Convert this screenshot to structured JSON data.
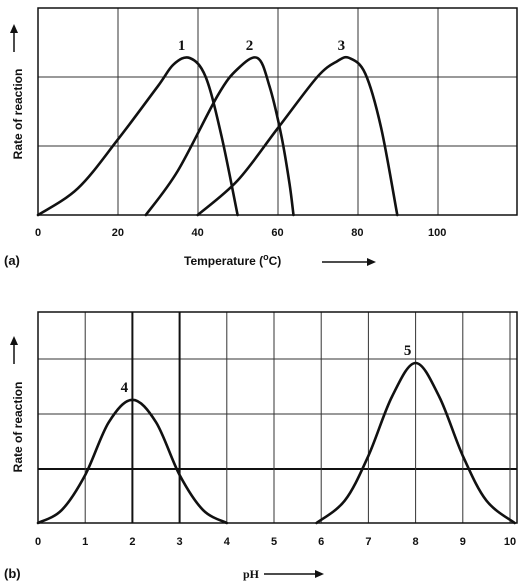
{
  "chart_data": [
    {
      "id": "a",
      "type": "line",
      "panel_label": "(a)",
      "title": "",
      "xlabel": "Temperature (°C)",
      "xlabel_main": "Temperature (",
      "xlabel_sup": "o",
      "xlabel_tail": "C)",
      "ylabel": "Rate of reaction",
      "xlim": [
        0,
        120
      ],
      "ylim": [
        0,
        1
      ],
      "xticks": [
        0,
        20,
        40,
        60,
        80,
        100
      ],
      "grid": true,
      "legend": "none",
      "series": [
        {
          "label": "1",
          "x": [
            0,
            10,
            20,
            30,
            34,
            38,
            42,
            46,
            50
          ],
          "y": [
            0,
            0.17,
            0.48,
            0.82,
            0.96,
            1.0,
            0.88,
            0.5,
            0
          ]
        },
        {
          "label": "2",
          "x": [
            27,
            35,
            45,
            50,
            55,
            58,
            61,
            63,
            64
          ],
          "y": [
            0,
            0.28,
            0.76,
            0.93,
            1.0,
            0.82,
            0.5,
            0.2,
            0
          ]
        },
        {
          "label": "3",
          "x": [
            40,
            50,
            60,
            70,
            75,
            78,
            82,
            86,
            90
          ],
          "y": [
            0,
            0.22,
            0.55,
            0.88,
            0.98,
            1.0,
            0.9,
            0.55,
            0
          ]
        }
      ]
    },
    {
      "id": "b",
      "type": "line",
      "panel_label": "(b)",
      "title": "",
      "xlabel": "pH",
      "ylabel": "Rate of reaction",
      "xlim": [
        0,
        10
      ],
      "ylim": [
        0,
        1
      ],
      "xticks": [
        0,
        1,
        2,
        3,
        4,
        5,
        6,
        7,
        8,
        9,
        10
      ],
      "grid": true,
      "legend": "none",
      "series": [
        {
          "label": "4",
          "x": [
            0,
            0.5,
            1,
            1.5,
            2,
            2.5,
            3,
            3.5,
            4
          ],
          "y": [
            0,
            0.08,
            0.3,
            0.63,
            0.77,
            0.63,
            0.3,
            0.08,
            0
          ]
        },
        {
          "label": "5",
          "x": [
            5.9,
            6.5,
            7,
            7.5,
            8,
            8.5,
            9,
            9.5,
            10.1
          ],
          "y": [
            0,
            0.14,
            0.42,
            0.79,
            1.0,
            0.79,
            0.42,
            0.14,
            0
          ]
        }
      ]
    }
  ]
}
